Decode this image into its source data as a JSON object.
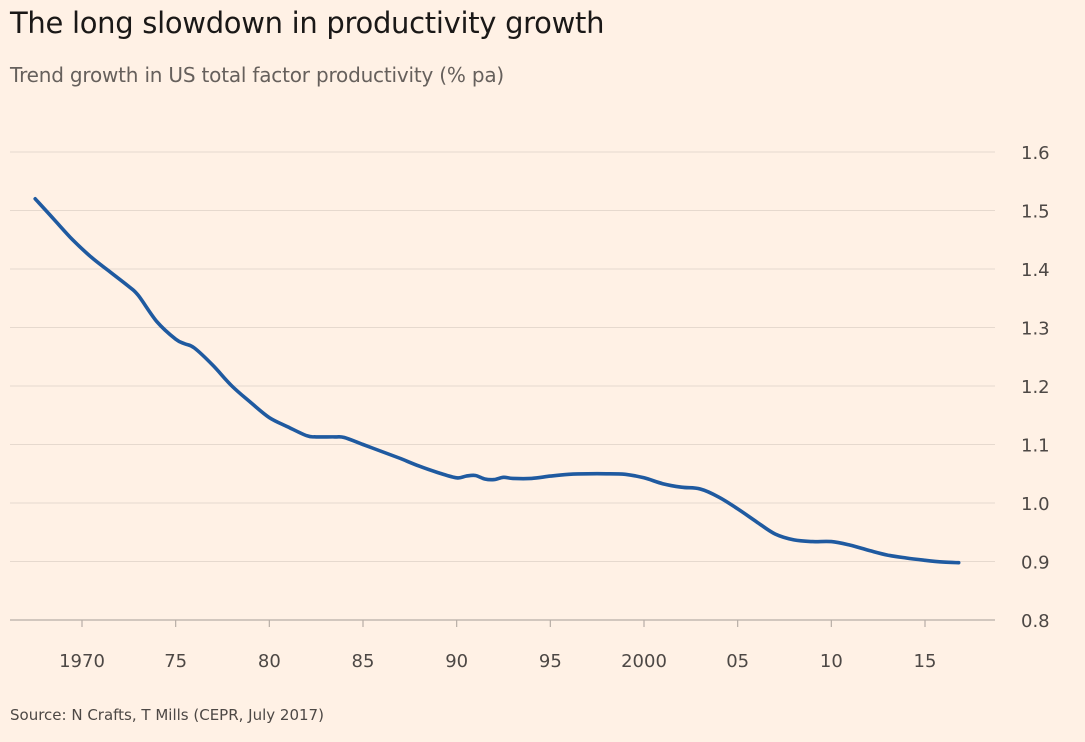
{
  "title": "The long slowdown in productivity growth",
  "subtitle": "Trend growth in US total factor productivity (% pa)",
  "source": "Source: N Crafts, T Mills (CEPR, July 2017)",
  "colors": {
    "background": "#fff1e5",
    "line": "#1f5aa0",
    "grid": "#e6d9ce",
    "baseline": "#b8aea6"
  },
  "chart_data": {
    "type": "line",
    "title": "The long slowdown in productivity growth",
    "subtitle": "Trend growth in US total factor productivity (% pa)",
    "xlabel": "",
    "ylabel": "",
    "xlim": [
      1967,
      2017.5
    ],
    "ylim": [
      0.8,
      1.6
    ],
    "y_axis_side": "right",
    "grid": true,
    "yticks": [
      0.8,
      0.9,
      1.0,
      1.1,
      1.2,
      1.3,
      1.4,
      1.5,
      1.6
    ],
    "ytick_labels": [
      "0.8",
      "0.9",
      "1.0",
      "1.1",
      "1.2",
      "1.3",
      "1.4",
      "1.5",
      "1.6"
    ],
    "xticks": [
      1970,
      1975,
      1980,
      1985,
      1990,
      1995,
      2000,
      2005,
      2010,
      2015
    ],
    "xtick_labels": [
      "1970",
      "75",
      "80",
      "85",
      "90",
      "95",
      "2000",
      "05",
      "10",
      "15"
    ],
    "series": [
      {
        "x": [
          1967.5,
          1968.5,
          1969.5,
          1970.5,
          1971.5,
          1972.5,
          1973.0,
          1974.0,
          1975.0,
          1975.5,
          1976.0,
          1977.0,
          1978.0,
          1979.0,
          1980.0,
          1981.0,
          1982.0,
          1982.5,
          1983.5,
          1984.0,
          1985.0,
          1986.0,
          1987.0,
          1988.0,
          1989.0,
          1990.0,
          1990.5,
          1991.0,
          1991.5,
          1992.0,
          1992.5,
          1993.0,
          1994.0,
          1995.0,
          1996.0,
          1997.0,
          1998.0,
          1999.0,
          2000.0,
          2001.0,
          2002.0,
          2003.0,
          2004.0,
          2005.0,
          2006.0,
          2007.0,
          2008.0,
          2009.0,
          2010.0,
          2011.0,
          2012.0,
          2013.0,
          2014.0,
          2015.0,
          2016.0,
          2016.8
        ],
        "values": [
          1.52,
          1.485,
          1.45,
          1.42,
          1.395,
          1.37,
          1.355,
          1.31,
          1.28,
          1.272,
          1.265,
          1.235,
          1.2,
          1.172,
          1.146,
          1.13,
          1.115,
          1.113,
          1.113,
          1.112,
          1.1,
          1.088,
          1.076,
          1.063,
          1.052,
          1.043,
          1.046,
          1.047,
          1.041,
          1.04,
          1.044,
          1.042,
          1.042,
          1.046,
          1.049,
          1.05,
          1.05,
          1.049,
          1.043,
          1.033,
          1.027,
          1.024,
          1.01,
          0.99,
          0.968,
          0.947,
          0.937,
          0.934,
          0.934,
          0.928,
          0.919,
          0.911,
          0.906,
          0.902,
          0.899,
          0.898
        ]
      }
    ]
  }
}
